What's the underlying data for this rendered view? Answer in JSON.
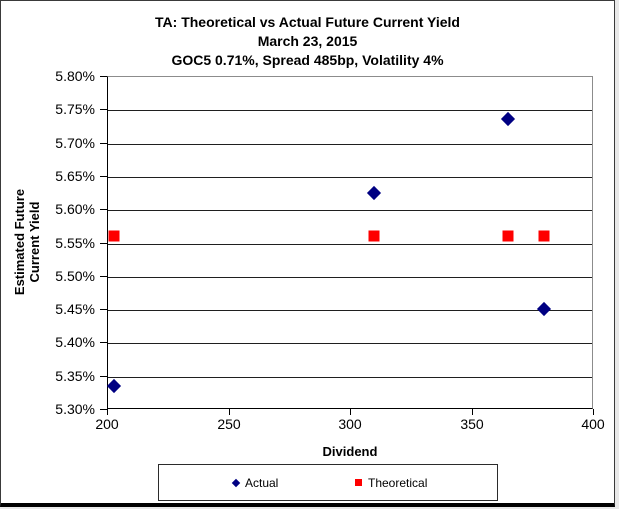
{
  "chart_data": {
    "type": "scatter",
    "title": "TA: Theoretical vs Actual Future Current Yield",
    "subtitle1": "March 23, 2015",
    "subtitle2": "GOC5 0.71%, Spread 485bp, Volatility 4%",
    "xlabel": "Dividend",
    "ylabel": "Estimated Future Current Yield",
    "ylabel_lines": [
      "Estimated Future",
      "Current Yield"
    ],
    "xlim": [
      200,
      400
    ],
    "ylim": [
      5.3,
      5.8
    ],
    "x_ticks": [
      "200",
      "250",
      "300",
      "350",
      "400"
    ],
    "y_ticks": [
      "5.80%",
      "5.75%",
      "5.70%",
      "5.65%",
      "5.60%",
      "5.55%",
      "5.50%",
      "5.45%",
      "5.40%",
      "5.35%",
      "5.30%"
    ],
    "grid": "horizontal gridlines at each y tick",
    "legend_position": "bottom",
    "colors": {
      "actual": "#000082",
      "theoretical": "#FE0000",
      "gridline": "#1f1f1f",
      "plot_border": "#8c8c8c"
    },
    "series": [
      {
        "name": "Actual",
        "marker": "diamond",
        "color": "#000082",
        "points": [
          {
            "x": 203,
            "y": 5.335
          },
          {
            "x": 310,
            "y": 5.625
          },
          {
            "x": 365,
            "y": 5.735
          },
          {
            "x": 380,
            "y": 5.45
          }
        ]
      },
      {
        "name": "Theoretical",
        "marker": "square",
        "color": "#FE0000",
        "points": [
          {
            "x": 203,
            "y": 5.56
          },
          {
            "x": 310,
            "y": 5.56
          },
          {
            "x": 365,
            "y": 5.56
          },
          {
            "x": 380,
            "y": 5.56
          }
        ]
      }
    ]
  }
}
